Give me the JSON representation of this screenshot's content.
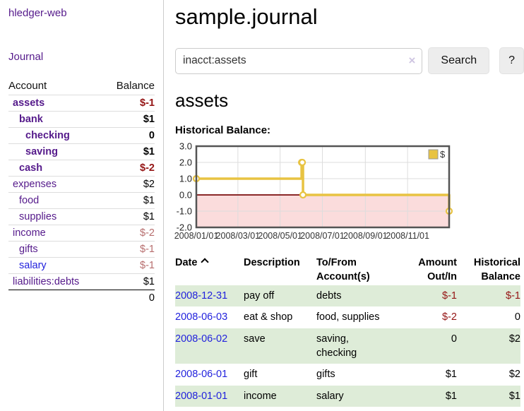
{
  "app": {
    "brand": "hledger-web",
    "nav_journal": "Journal"
  },
  "sidebar": {
    "headers": {
      "account": "Account",
      "balance": "Balance"
    },
    "rows": [
      {
        "label": "assets",
        "indent": 1,
        "bold": true,
        "value": "$-1",
        "negative": true,
        "unvisited": false
      },
      {
        "label": "bank",
        "indent": 2,
        "bold": true,
        "value": "$1",
        "negative": false,
        "unvisited": false
      },
      {
        "label": "checking",
        "indent": 3,
        "bold": true,
        "value": "0",
        "negative": false,
        "unvisited": false
      },
      {
        "label": "saving",
        "indent": 3,
        "bold": true,
        "value": "$1",
        "negative": false,
        "unvisited": false
      },
      {
        "label": "cash",
        "indent": 2,
        "bold": true,
        "value": "$-2",
        "negative": true,
        "unvisited": false
      },
      {
        "label": "expenses",
        "indent": 1,
        "bold": false,
        "value": "$2",
        "negative": false,
        "unvisited": false
      },
      {
        "label": "food",
        "indent": 2,
        "bold": false,
        "value": "$1",
        "negative": false,
        "unvisited": false
      },
      {
        "label": "supplies",
        "indent": 2,
        "bold": false,
        "value": "$1",
        "negative": false,
        "unvisited": false
      },
      {
        "label": "income",
        "indent": 1,
        "bold": false,
        "value": "$-2",
        "negative": true,
        "unvisited": false
      },
      {
        "label": "gifts",
        "indent": 2,
        "bold": false,
        "value": "$-1",
        "negative": true,
        "unvisited": false
      },
      {
        "label": "salary",
        "indent": 2,
        "bold": false,
        "value": "$-1",
        "negative": true,
        "unvisited": true
      },
      {
        "label": "liabilities:debts",
        "indent": 1,
        "bold": false,
        "value": "$1",
        "negative": false,
        "unvisited": false
      }
    ],
    "total": "0"
  },
  "main": {
    "title": "sample.journal",
    "search": {
      "value": "inacct:assets",
      "clear_icon": "×",
      "button_label": "Search",
      "help_label": "?"
    },
    "account_heading": "assets",
    "chart_title": "Historical Balance:"
  },
  "chart_data": {
    "type": "line",
    "step": true,
    "title": "Historical Balance",
    "series": [
      {
        "name": "$",
        "color": "#e8c342",
        "points": [
          [
            "2008-01-01",
            1
          ],
          [
            "2008-06-01",
            2
          ],
          [
            "2008-06-02",
            2
          ],
          [
            "2008-06-03",
            0
          ],
          [
            "2008-12-31",
            -1
          ]
        ]
      }
    ],
    "xlim": [
      "2008-01-01",
      "2008-12-31"
    ],
    "ylim": [
      -2,
      3
    ],
    "y_ticks": [
      3.0,
      2.0,
      1.0,
      0.0,
      -1.0,
      -2.0
    ],
    "x_ticks": [
      "2008/01/01",
      "2008/03/01",
      "2008/05/01",
      "2008/07/01",
      "2008/09/01",
      "2008/11/01"
    ],
    "legend": "$",
    "legend_position": "top-right",
    "grid": true,
    "marker": "open-circle",
    "negative_region_color": "#fbdcdc",
    "zero_line_color": "#7a0c0c",
    "grid_color": "#dddddd",
    "border_color": "#545454"
  },
  "transactions": {
    "headers": [
      {
        "label": "Date",
        "align": "left",
        "sorted": "asc"
      },
      {
        "label": "Description",
        "align": "left"
      },
      {
        "label": "To/From Account(s)",
        "align": "left"
      },
      {
        "label": "Amount Out/In",
        "align": "right"
      },
      {
        "label": "Historical Balance",
        "align": "right"
      }
    ],
    "rows": [
      {
        "date": "2008-12-31",
        "description": "pay off",
        "accounts": "debts",
        "amount": "$-1",
        "amount_negative": true,
        "balance": "$-1",
        "balance_negative": true
      },
      {
        "date": "2008-06-03",
        "description": "eat & shop",
        "accounts": "food, supplies",
        "amount": "$-2",
        "amount_negative": true,
        "balance": "0",
        "balance_negative": false
      },
      {
        "date": "2008-06-02",
        "description": "save",
        "accounts": "saving, checking",
        "amount": "0",
        "amount_negative": false,
        "balance": "$2",
        "balance_negative": false
      },
      {
        "date": "2008-06-01",
        "description": "gift",
        "accounts": "gifts",
        "amount": "$1",
        "amount_negative": false,
        "balance": "$2",
        "balance_negative": false
      },
      {
        "date": "2008-01-01",
        "description": "income",
        "accounts": "salary",
        "amount": "$1",
        "amount_negative": false,
        "balance": "$1",
        "balance_negative": false
      }
    ]
  },
  "colors": {
    "link_visited_purple": "#551a8b",
    "link_blue": "#2222dd",
    "negative_red": "#941414",
    "negative_soft_red": "#b76e6e",
    "row_stripe_green": "#deecd8",
    "series_gold": "#e8c342"
  }
}
